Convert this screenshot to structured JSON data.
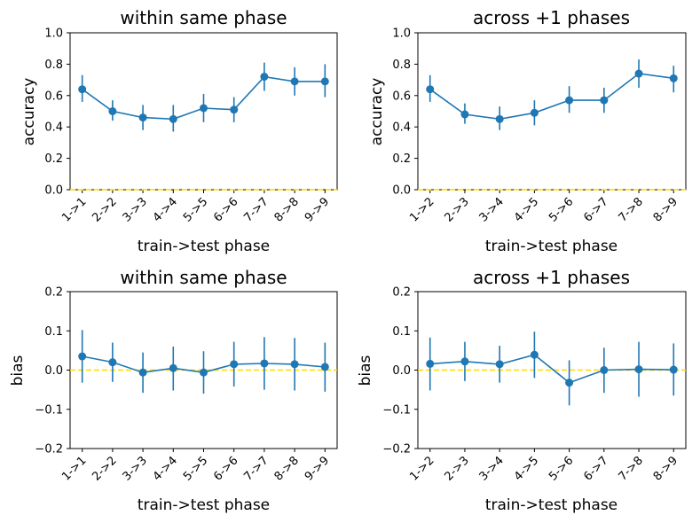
{
  "chart_data": [
    {
      "type": "line",
      "title": "within same phase",
      "xlabel": "train->test phase",
      "ylabel": "accuracy",
      "categories": [
        "1->1",
        "2->2",
        "3->3",
        "4->4",
        "5->5",
        "6->6",
        "7->7",
        "8->8",
        "9->9"
      ],
      "ylim": [
        0.0,
        1.0
      ],
      "yticks": [
        "0.0",
        "0.2",
        "0.4",
        "0.6",
        "0.8",
        "1.0"
      ],
      "reference_line": 0.0,
      "series": [
        {
          "values": [
            0.64,
            0.5,
            0.46,
            0.45,
            0.52,
            0.51,
            0.72,
            0.69,
            0.69
          ],
          "err_low": [
            0.56,
            0.44,
            0.38,
            0.37,
            0.43,
            0.43,
            0.63,
            0.6,
            0.59
          ],
          "err_high": [
            0.73,
            0.57,
            0.54,
            0.54,
            0.61,
            0.59,
            0.81,
            0.78,
            0.8
          ]
        }
      ]
    },
    {
      "type": "line",
      "title": "across +1 phases",
      "xlabel": "train->test phase",
      "ylabel": "accuracy",
      "categories": [
        "1->2",
        "2->3",
        "3->4",
        "4->5",
        "5->6",
        "6->7",
        "7->8",
        "8->9"
      ],
      "ylim": [
        0.0,
        1.0
      ],
      "yticks": [
        "0.0",
        "0.2",
        "0.4",
        "0.6",
        "0.8",
        "1.0"
      ],
      "reference_line": 0.0,
      "series": [
        {
          "values": [
            0.64,
            0.48,
            0.45,
            0.49,
            0.57,
            0.57,
            0.74,
            0.71
          ],
          "err_low": [
            0.56,
            0.42,
            0.38,
            0.41,
            0.49,
            0.49,
            0.65,
            0.62
          ],
          "err_high": [
            0.73,
            0.55,
            0.53,
            0.57,
            0.66,
            0.65,
            0.83,
            0.79
          ]
        }
      ]
    },
    {
      "type": "line",
      "title": "within same phase",
      "xlabel": "train->test phase",
      "ylabel": "bias",
      "categories": [
        "1->1",
        "2->2",
        "3->3",
        "4->4",
        "5->5",
        "6->6",
        "7->7",
        "8->8",
        "9->9"
      ],
      "ylim": [
        -0.2,
        0.2
      ],
      "yticks": [
        "−0.2",
        "−0.1",
        "0.0",
        "0.1",
        "0.2"
      ],
      "reference_line": 0.0,
      "series": [
        {
          "values": [
            0.035,
            0.02,
            -0.006,
            0.005,
            -0.006,
            0.015,
            0.017,
            0.015,
            0.008
          ],
          "err_low": [
            -0.032,
            -0.03,
            -0.058,
            -0.052,
            -0.06,
            -0.042,
            -0.05,
            -0.052,
            -0.055
          ],
          "err_high": [
            0.102,
            0.07,
            0.045,
            0.06,
            0.048,
            0.072,
            0.084,
            0.082,
            0.07
          ]
        }
      ]
    },
    {
      "type": "line",
      "title": "across +1 phases",
      "xlabel": "train->test phase",
      "ylabel": "bias",
      "categories": [
        "1->2",
        "2->3",
        "3->4",
        "4->5",
        "5->6",
        "6->7",
        "7->8",
        "8->9"
      ],
      "ylim": [
        -0.2,
        0.2
      ],
      "yticks": [
        "−0.2",
        "−0.1",
        "0.0",
        "0.1",
        "0.2"
      ],
      "reference_line": 0.0,
      "series": [
        {
          "values": [
            0.016,
            0.022,
            0.015,
            0.039,
            -0.032,
            0.0,
            0.002,
            0.001
          ],
          "err_low": [
            -0.052,
            -0.028,
            -0.032,
            -0.02,
            -0.09,
            -0.058,
            -0.068,
            -0.065
          ],
          "err_high": [
            0.083,
            0.072,
            0.062,
            0.098,
            0.025,
            0.057,
            0.072,
            0.068
          ]
        }
      ]
    }
  ],
  "colors": {
    "series": "#1f77b4",
    "reference_line": "#ffd700"
  }
}
